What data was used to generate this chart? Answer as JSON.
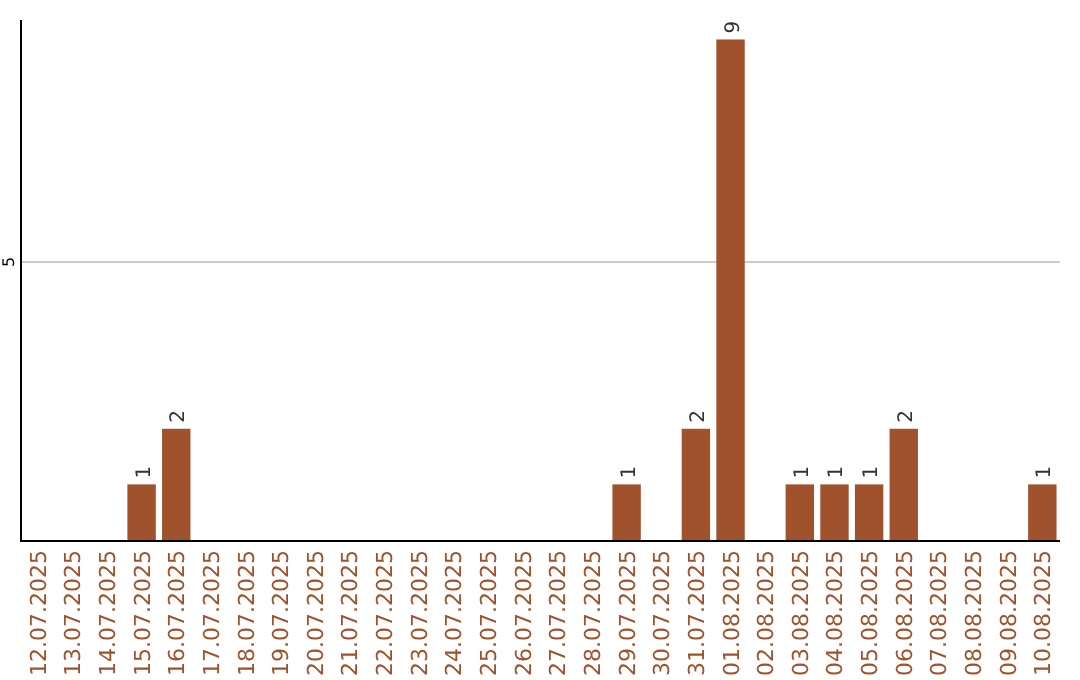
{
  "chart_data": {
    "type": "bar",
    "categories": [
      "12.07.2025",
      "13.07.2025",
      "14.07.2025",
      "15.07.2025",
      "16.07.2025",
      "17.07.2025",
      "18.07.2025",
      "19.07.2025",
      "20.07.2025",
      "21.07.2025",
      "22.07.2025",
      "23.07.2025",
      "24.07.2025",
      "25.07.2025",
      "26.07.2025",
      "27.07.2025",
      "28.07.2025",
      "29.07.2025",
      "30.07.2025",
      "31.07.2025",
      "01.08.2025",
      "02.08.2025",
      "03.08.2025",
      "04.08.2025",
      "05.08.2025",
      "06.08.2025",
      "07.08.2025",
      "08.08.2025",
      "09.08.2025",
      "10.08.2025"
    ],
    "values": [
      0,
      0,
      0,
      1,
      2,
      0,
      0,
      0,
      0,
      0,
      0,
      0,
      0,
      0,
      0,
      0,
      0,
      1,
      0,
      2,
      9,
      0,
      1,
      1,
      1,
      2,
      0,
      0,
      0,
      1
    ],
    "value_labels": [
      null,
      null,
      null,
      "1",
      "2",
      null,
      null,
      null,
      null,
      null,
      null,
      null,
      null,
      null,
      null,
      null,
      null,
      "1",
      null,
      "2",
      "9",
      null,
      "1",
      "1",
      "1",
      "2",
      null,
      null,
      null,
      "1"
    ],
    "color": "#a0522d",
    "ylim": [
      0,
      9.35
    ],
    "yticks": [
      5
    ],
    "grid": "y"
  }
}
